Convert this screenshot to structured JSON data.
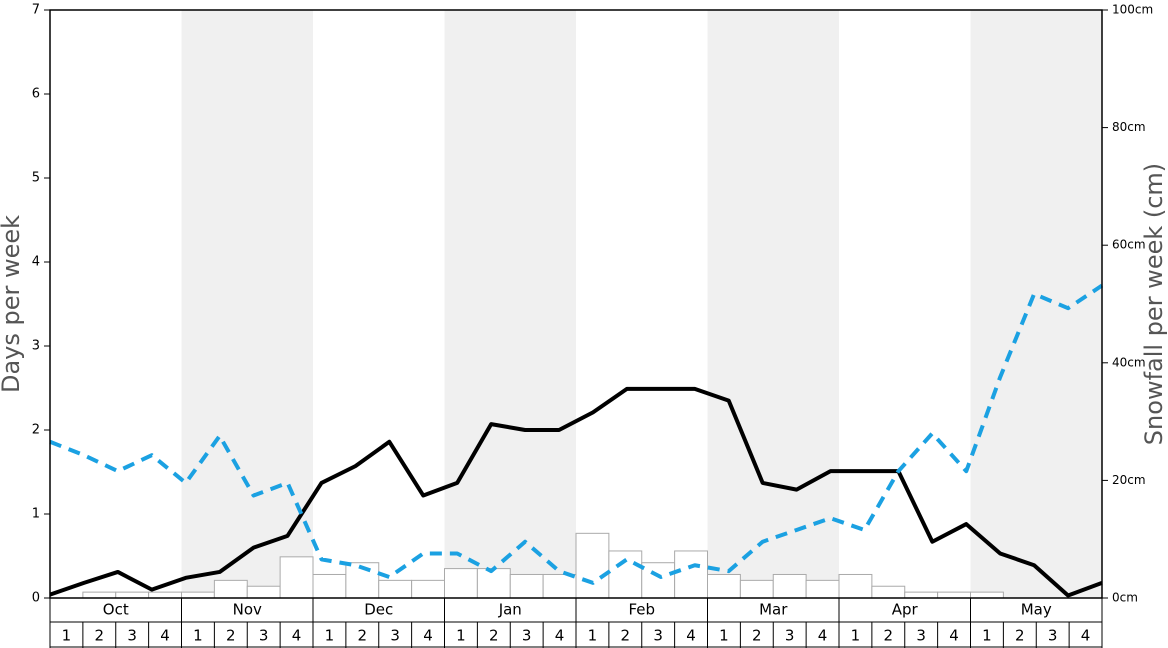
{
  "chart_data": {
    "type": "bar-line",
    "y_label": "Days per week",
    "y2_label": "Snowfall per week (cm)",
    "months": [
      "Oct",
      "Nov",
      "Dec",
      "Jan",
      "Feb",
      "Mar",
      "Apr",
      "May"
    ],
    "categories": [
      "1",
      "2",
      "3",
      "4",
      "1",
      "2",
      "3",
      "4",
      "1",
      "2",
      "3",
      "4",
      "1",
      "2",
      "3",
      "4",
      "1",
      "2",
      "3",
      "4",
      "1",
      "2",
      "3",
      "4",
      "1",
      "2",
      "3",
      "4",
      "1",
      "2",
      "3",
      "4"
    ],
    "ylim": [
      0,
      7
    ],
    "yticks": [
      0,
      1,
      2,
      3,
      4,
      5,
      6,
      7
    ],
    "y2lim": [
      0,
      100
    ],
    "y2ticks": [
      {
        "value": 0,
        "label": "0cm"
      },
      {
        "value": 20,
        "label": "20cm"
      },
      {
        "value": 40,
        "label": "40cm"
      },
      {
        "value": 60,
        "label": "60cm"
      },
      {
        "value": 80,
        "label": "80cm"
      },
      {
        "value": 100,
        "label": "100cm"
      }
    ],
    "series": [
      {
        "kind": "bar",
        "axis": "y2",
        "color": "#ffffff",
        "values": [
          0,
          1,
          1,
          1,
          1,
          3,
          2,
          7,
          4,
          6,
          3,
          3,
          5,
          5,
          4,
          4,
          11,
          8,
          6,
          8,
          4,
          3,
          4,
          3,
          4,
          2,
          1,
          1,
          1,
          0,
          0,
          0
        ]
      },
      {
        "kind": "line",
        "color": "#000000",
        "dash": false,
        "values": [
          0.04,
          0.18,
          0.31,
          0.1,
          0.24,
          0.31,
          0.6,
          0.74,
          1.37,
          1.57,
          1.86,
          1.22,
          1.37,
          2.07,
          2.0,
          2.0,
          2.21,
          2.49,
          2.49,
          2.49,
          2.35,
          1.37,
          1.29,
          1.51,
          1.51,
          1.51,
          0.67,
          0.88,
          0.53,
          0.39,
          0.03,
          0.18
        ]
      },
      {
        "kind": "line",
        "color": "#1ba1e2",
        "dash": true,
        "values": [
          1.86,
          1.7,
          1.51,
          1.7,
          1.37,
          1.93,
          1.22,
          1.37,
          0.46,
          0.39,
          0.25,
          0.53,
          0.53,
          0.32,
          0.67,
          0.32,
          0.18,
          0.46,
          0.25,
          0.39,
          0.32,
          0.67,
          0.81,
          0.95,
          0.81,
          1.51,
          1.96,
          1.51,
          2.63,
          3.62,
          3.45,
          3.72
        ]
      }
    ]
  }
}
